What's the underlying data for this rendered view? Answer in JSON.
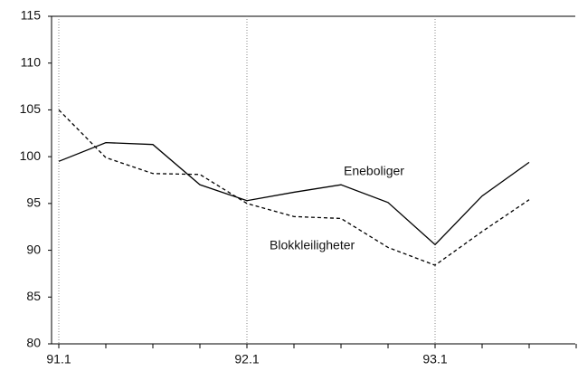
{
  "chart_data": {
    "type": "line",
    "categories": [
      "91.1",
      null,
      null,
      null,
      "92.1",
      null,
      null,
      null,
      "93.1",
      null,
      null,
      null
    ],
    "series": [
      {
        "name": "Eneboliger",
        "color": "#000000",
        "line_style": "solid",
        "values": [
          99.5,
          101.5,
          101.3,
          97,
          95.3,
          96.2,
          97,
          95.1,
          90.6,
          95.8,
          99.4,
          null
        ]
      },
      {
        "name": "Blokkleiligheter",
        "color": "#000000",
        "line_style": "dashed",
        "values": [
          105,
          99.9,
          98.2,
          98.1,
          95,
          93.6,
          93.4,
          90.3,
          88.4,
          92,
          95.4,
          null
        ]
      }
    ],
    "ylim": [
      80,
      115
    ],
    "yticks": [
      80,
      85,
      90,
      95,
      100,
      105,
      110,
      115
    ],
    "grid": "x-dotted"
  }
}
